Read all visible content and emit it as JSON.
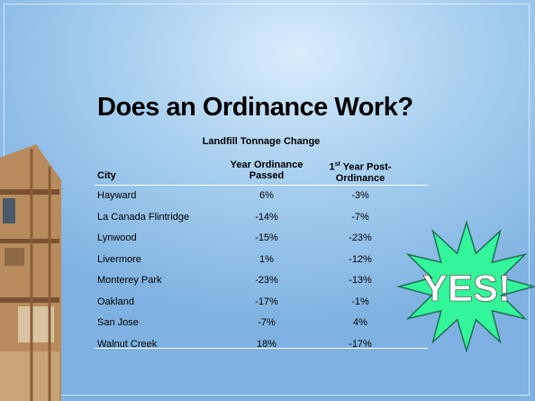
{
  "slide": {
    "title": "Does an Ordinance Work?",
    "table": {
      "caption": "Landfill Tonnage Change",
      "headers": {
        "city": "City",
        "passed": "Year Ordinance Passed",
        "post": {
          "number": "1",
          "suffix": "st",
          "rest": "Year Post-Ordinance"
        }
      },
      "rows": [
        [
          "Hayward",
          "6%",
          "-3%"
        ],
        [
          "La Canada Flintridge",
          "-14%",
          "-7%"
        ],
        [
          "Lynwood",
          "-15%",
          "-23%"
        ],
        [
          "Livermore",
          "1%",
          "-12%"
        ],
        [
          "Monterey Park",
          "-23%",
          "-13%"
        ],
        [
          "Oakland",
          "-17%",
          "-1%"
        ],
        [
          "San Jose",
          "-7%",
          "4%"
        ],
        [
          "Walnut Creek",
          "18%",
          "-17%"
        ]
      ]
    },
    "callout": "YES!"
  }
}
